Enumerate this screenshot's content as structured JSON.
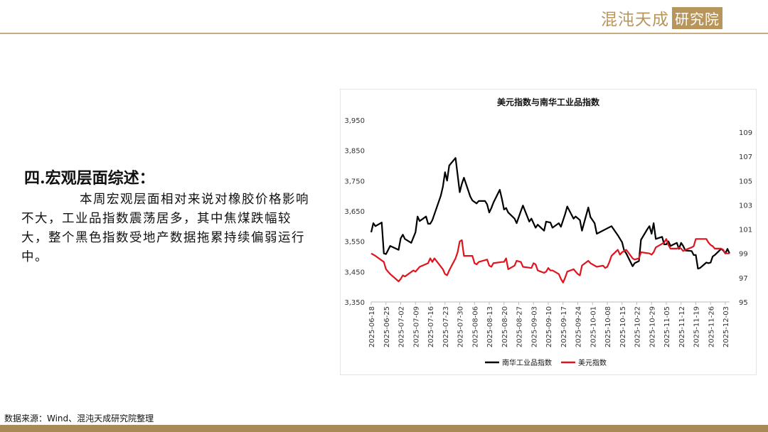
{
  "header": {
    "logo_text": "混沌天成",
    "logo_badge": "研究院"
  },
  "section": {
    "heading": "四.宏观层面综述：",
    "paragraph": "本周宏观层面相对来说对橡胶价格影响不大，工业品指数震荡居多，其中焦煤跌幅较大，整个黑色指数受地产数据拖累持续偏弱运行中。"
  },
  "footer": {
    "source": "数据来源：Wind、混沌天成研究院整理"
  },
  "colors": {
    "accent": "#b8955a",
    "series_black": "#000000",
    "series_red": "#e0141e"
  },
  "chart_data": {
    "type": "line",
    "title": "美元指数与南华工业品指数",
    "x_ticks": [
      "2025-06-18",
      "2025-06-25",
      "2025-07-02",
      "2025-07-09",
      "2025-07-16",
      "2025-07-23",
      "2025-07-30",
      "2025-08-06",
      "2025-08-13",
      "2025-08-20",
      "2025-08-27",
      "2025-09-03",
      "2025-09-10",
      "2025-09-17",
      "2025-09-24",
      "2025-10-01",
      "2025-10-08",
      "2025-10-15",
      "2025-10-22",
      "2025-10-29",
      "2025-11-05",
      "2025-11-12",
      "2025-11-19",
      "2025-11-26",
      "2025-12-03"
    ],
    "xlim": [
      "2025-06-18",
      "2025-12-05"
    ],
    "y_left": {
      "ticks": [
        "3,350",
        "3,450",
        "3,550",
        "3,650",
        "3,750",
        "3,850",
        "3,950"
      ],
      "ylim": [
        3350,
        3950
      ]
    },
    "y_right": {
      "ticks": [
        "95",
        "97",
        "99",
        "101",
        "103",
        "105",
        "107",
        "109"
      ],
      "ylim": [
        95,
        110
      ]
    },
    "grid": false,
    "legend": "bottom",
    "series": [
      {
        "name": "南华工业品指数",
        "axis": "left",
        "color": "#000000",
        "points": [
          [
            "2025-06-18",
            3580
          ],
          [
            "2025-06-19",
            3610
          ],
          [
            "2025-06-20",
            3600
          ],
          [
            "2025-06-23",
            3612
          ],
          [
            "2025-06-24",
            3510
          ],
          [
            "2025-06-25",
            3508
          ],
          [
            "2025-06-27",
            3535
          ],
          [
            "2025-07-01",
            3522
          ],
          [
            "2025-07-02",
            3560
          ],
          [
            "2025-07-03",
            3572
          ],
          [
            "2025-07-04",
            3558
          ],
          [
            "2025-07-07",
            3545
          ],
          [
            "2025-07-09",
            3580
          ],
          [
            "2025-07-10",
            3632
          ],
          [
            "2025-07-11",
            3617
          ],
          [
            "2025-07-14",
            3632
          ],
          [
            "2025-07-15",
            3608
          ],
          [
            "2025-07-16",
            3608
          ],
          [
            "2025-07-17",
            3620
          ],
          [
            "2025-07-21",
            3700
          ],
          [
            "2025-07-22",
            3730
          ],
          [
            "2025-07-23",
            3778
          ],
          [
            "2025-07-24",
            3750
          ],
          [
            "2025-07-25",
            3800
          ],
          [
            "2025-07-28",
            3825
          ],
          [
            "2025-07-29",
            3770
          ],
          [
            "2025-07-30",
            3712
          ],
          [
            "2025-07-31",
            3740
          ],
          [
            "2025-08-01",
            3760
          ],
          [
            "2025-08-04",
            3698
          ],
          [
            "2025-08-05",
            3685
          ],
          [
            "2025-08-07",
            3675
          ],
          [
            "2025-08-08",
            3683
          ],
          [
            "2025-08-11",
            3683
          ],
          [
            "2025-08-12",
            3672
          ],
          [
            "2025-08-13",
            3645
          ],
          [
            "2025-08-14",
            3660
          ],
          [
            "2025-08-15",
            3678
          ],
          [
            "2025-08-18",
            3720
          ],
          [
            "2025-08-19",
            3690
          ],
          [
            "2025-08-20",
            3655
          ],
          [
            "2025-08-21",
            3660
          ],
          [
            "2025-08-22",
            3645
          ],
          [
            "2025-08-25",
            3625
          ],
          [
            "2025-08-26",
            3610
          ],
          [
            "2025-08-28",
            3650
          ],
          [
            "2025-08-29",
            3668
          ],
          [
            "2025-09-01",
            3615
          ],
          [
            "2025-09-02",
            3625
          ],
          [
            "2025-09-04",
            3595
          ],
          [
            "2025-09-05",
            3605
          ],
          [
            "2025-09-08",
            3585
          ],
          [
            "2025-09-09",
            3615
          ],
          [
            "2025-09-11",
            3612
          ],
          [
            "2025-09-12",
            3595
          ],
          [
            "2025-09-15",
            3610
          ],
          [
            "2025-09-16",
            3598
          ],
          [
            "2025-09-18",
            3640
          ],
          [
            "2025-09-19",
            3665
          ],
          [
            "2025-09-22",
            3625
          ],
          [
            "2025-09-23",
            3632
          ],
          [
            "2025-09-25",
            3620
          ],
          [
            "2025-09-26",
            3585
          ],
          [
            "2025-09-29",
            3662
          ],
          [
            "2025-09-30",
            3630
          ],
          [
            "2025-10-02",
            3610
          ],
          [
            "2025-10-03",
            3575
          ],
          [
            "2025-10-10",
            3600
          ],
          [
            "2025-10-13",
            3570
          ],
          [
            "2025-10-15",
            3547
          ],
          [
            "2025-10-16",
            3520
          ],
          [
            "2025-10-17",
            3510
          ],
          [
            "2025-10-20",
            3468
          ],
          [
            "2025-10-21",
            3478
          ],
          [
            "2025-10-23",
            3485
          ],
          [
            "2025-10-24",
            3555
          ],
          [
            "2025-10-27",
            3590
          ],
          [
            "2025-10-28",
            3600
          ],
          [
            "2025-10-29",
            3575
          ],
          [
            "2025-10-30",
            3610
          ],
          [
            "2025-10-31",
            3558
          ],
          [
            "2025-11-03",
            3565
          ],
          [
            "2025-11-04",
            3540
          ],
          [
            "2025-11-05",
            3540
          ],
          [
            "2025-11-06",
            3550
          ],
          [
            "2025-11-07",
            3535
          ],
          [
            "2025-11-10",
            3545
          ],
          [
            "2025-11-11",
            3525
          ],
          [
            "2025-11-12",
            3545
          ],
          [
            "2025-11-13",
            3535
          ],
          [
            "2025-11-14",
            3520
          ],
          [
            "2025-11-17",
            3518
          ],
          [
            "2025-11-18",
            3505
          ],
          [
            "2025-11-19",
            3505
          ],
          [
            "2025-11-20",
            3460
          ],
          [
            "2025-11-21",
            3462
          ],
          [
            "2025-11-24",
            3480
          ],
          [
            "2025-11-25",
            3478
          ],
          [
            "2025-11-26",
            3480
          ],
          [
            "2025-11-27",
            3500
          ],
          [
            "2025-11-28",
            3505
          ],
          [
            "2025-12-01",
            3525
          ],
          [
            "2025-12-02",
            3520
          ],
          [
            "2025-12-03",
            3510
          ],
          [
            "2025-12-04",
            3525
          ],
          [
            "2025-12-05",
            3510
          ]
        ]
      },
      {
        "name": "美元指数",
        "axis": "right",
        "color": "#e0141e",
        "points": [
          [
            "2025-06-18",
            99.0
          ],
          [
            "2025-06-20",
            98.8
          ],
          [
            "2025-06-24",
            98.3
          ],
          [
            "2025-06-25",
            97.7
          ],
          [
            "2025-06-26",
            97.5
          ],
          [
            "2025-06-27",
            97.3
          ],
          [
            "2025-07-01",
            96.7
          ],
          [
            "2025-07-02",
            96.9
          ],
          [
            "2025-07-03",
            97.2
          ],
          [
            "2025-07-04",
            97.1
          ],
          [
            "2025-07-08",
            97.6
          ],
          [
            "2025-07-09",
            97.5
          ],
          [
            "2025-07-11",
            97.9
          ],
          [
            "2025-07-15",
            98.2
          ],
          [
            "2025-07-16",
            98.6
          ],
          [
            "2025-07-17",
            98.3
          ],
          [
            "2025-07-18",
            98.6
          ],
          [
            "2025-07-22",
            97.7
          ],
          [
            "2025-07-23",
            97.3
          ],
          [
            "2025-07-24",
            97.2
          ],
          [
            "2025-07-25",
            97.6
          ],
          [
            "2025-07-28",
            98.6
          ],
          [
            "2025-07-29",
            99.1
          ],
          [
            "2025-07-30",
            100.0
          ],
          [
            "2025-07-31",
            100.1
          ],
          [
            "2025-08-01",
            98.8
          ],
          [
            "2025-08-05",
            98.8
          ],
          [
            "2025-08-06",
            98.2
          ],
          [
            "2025-08-07",
            98.1
          ],
          [
            "2025-08-08",
            98.3
          ],
          [
            "2025-08-12",
            98.5
          ],
          [
            "2025-08-13",
            98.0
          ],
          [
            "2025-08-14",
            97.9
          ],
          [
            "2025-08-15",
            98.2
          ],
          [
            "2025-08-19",
            98.3
          ],
          [
            "2025-08-20",
            98.3
          ],
          [
            "2025-08-21",
            98.6
          ],
          [
            "2025-08-22",
            97.7
          ],
          [
            "2025-08-25",
            98.0
          ],
          [
            "2025-08-26",
            98.4
          ],
          [
            "2025-08-28",
            98.3
          ],
          [
            "2025-08-29",
            97.9
          ],
          [
            "2025-09-02",
            97.8
          ],
          [
            "2025-09-03",
            98.2
          ],
          [
            "2025-09-04",
            98.1
          ],
          [
            "2025-09-05",
            97.6
          ],
          [
            "2025-09-08",
            97.4
          ],
          [
            "2025-09-09",
            97.5
          ],
          [
            "2025-09-10",
            97.8
          ],
          [
            "2025-09-11",
            97.6
          ],
          [
            "2025-09-12",
            97.6
          ],
          [
            "2025-09-15",
            97.3
          ],
          [
            "2025-09-16",
            96.9
          ],
          [
            "2025-09-17",
            96.6
          ],
          [
            "2025-09-18",
            97.0
          ],
          [
            "2025-09-19",
            97.5
          ],
          [
            "2025-09-22",
            97.7
          ],
          [
            "2025-09-24",
            97.3
          ],
          [
            "2025-09-25",
            97.2
          ],
          [
            "2025-09-26",
            98.0
          ],
          [
            "2025-09-29",
            98.4
          ],
          [
            "2025-09-30",
            98.2
          ],
          [
            "2025-10-03",
            97.9
          ],
          [
            "2025-10-06",
            98.0
          ],
          [
            "2025-10-07",
            97.8
          ],
          [
            "2025-10-08",
            97.9
          ],
          [
            "2025-10-09",
            98.3
          ],
          [
            "2025-10-10",
            98.8
          ],
          [
            "2025-10-13",
            99.3
          ],
          [
            "2025-10-14",
            98.9
          ],
          [
            "2025-10-15",
            99.1
          ],
          [
            "2025-10-17",
            99.3
          ],
          [
            "2025-10-20",
            98.6
          ],
          [
            "2025-10-21",
            98.5
          ],
          [
            "2025-10-23",
            98.6
          ],
          [
            "2025-10-24",
            99.1
          ],
          [
            "2025-10-28",
            99.0
          ],
          [
            "2025-10-29",
            98.9
          ],
          [
            "2025-10-30",
            99.1
          ],
          [
            "2025-10-31",
            99.5
          ],
          [
            "2025-11-03",
            99.8
          ],
          [
            "2025-11-04",
            99.9
          ],
          [
            "2025-11-05",
            100.2
          ],
          [
            "2025-11-06",
            99.7
          ],
          [
            "2025-11-07",
            99.4
          ],
          [
            "2025-11-10",
            99.4
          ],
          [
            "2025-11-11",
            99.5
          ],
          [
            "2025-11-12",
            99.4
          ],
          [
            "2025-11-13",
            99.2
          ],
          [
            "2025-11-14",
            99.3
          ],
          [
            "2025-11-17",
            99.5
          ],
          [
            "2025-11-18",
            99.6
          ],
          [
            "2025-11-19",
            100.2
          ],
          [
            "2025-11-20",
            100.2
          ],
          [
            "2025-11-21",
            100.2
          ],
          [
            "2025-11-24",
            100.2
          ],
          [
            "2025-11-25",
            99.9
          ],
          [
            "2025-11-26",
            99.7
          ],
          [
            "2025-11-27",
            99.6
          ],
          [
            "2025-11-28",
            99.4
          ],
          [
            "2025-12-01",
            99.4
          ],
          [
            "2025-12-02",
            99.3
          ],
          [
            "2025-12-03",
            99.0
          ],
          [
            "2025-12-04",
            99.0
          ],
          [
            "2025-12-05",
            99.0
          ]
        ]
      }
    ]
  }
}
